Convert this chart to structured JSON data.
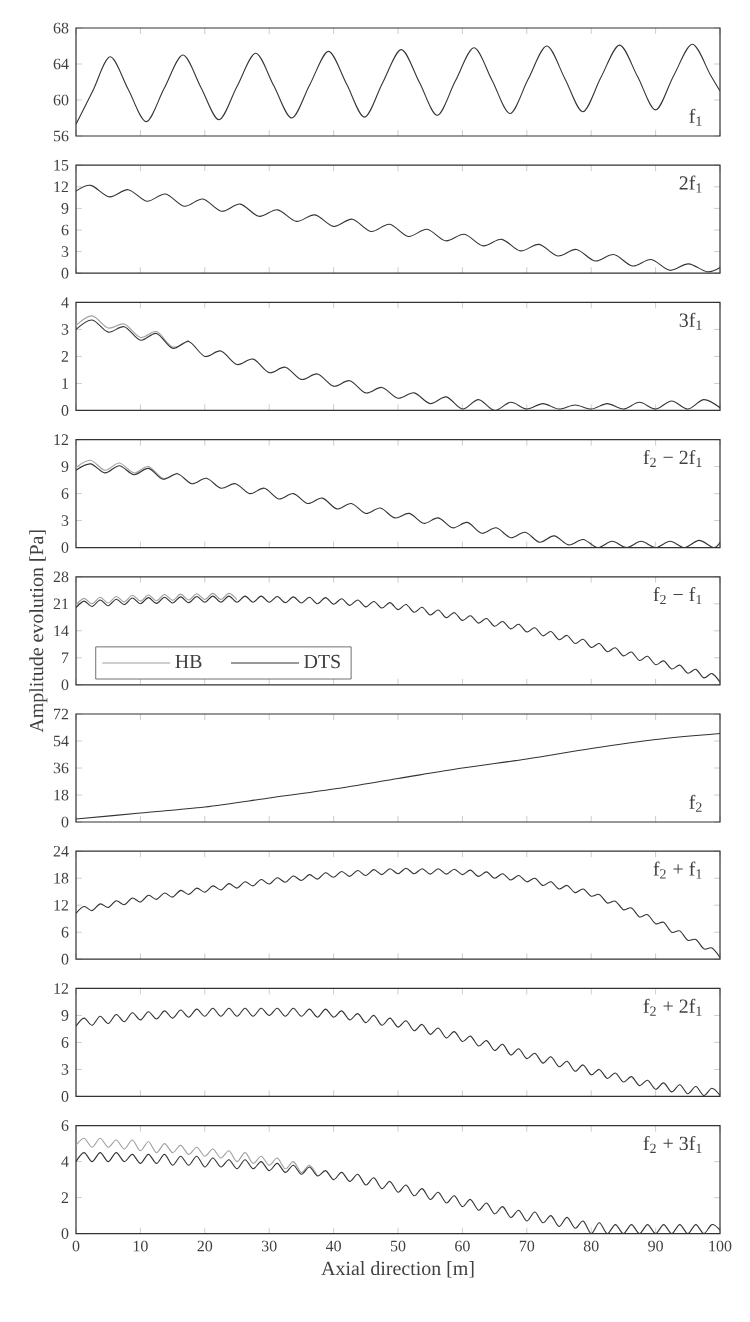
{
  "chart_data": [
    {
      "type": "line",
      "title": "f$_{1}$",
      "xlim": [
        0,
        100
      ],
      "xticks": [
        0,
        10,
        20,
        30,
        40,
        50,
        60,
        70,
        80,
        90,
        100
      ],
      "ylim": [
        56,
        68
      ],
      "yticks": [
        56,
        60,
        64,
        68
      ],
      "tick_labels": "y",
      "x": [
        0,
        2.6,
        5.3,
        8.1,
        10.9,
        13.7,
        16.6,
        19.4,
        22.2,
        25.0,
        27.9,
        30.7,
        33.5,
        36.3,
        39.2,
        42.0,
        44.8,
        47.6,
        50.5,
        53.3,
        56.1,
        58.9,
        61.8,
        64.6,
        67.4,
        70.2,
        73.1,
        75.9,
        78.7,
        81.5,
        84.4,
        87.2,
        90.0,
        92.8,
        95.7,
        98.5,
        100
      ],
      "series": [
        {
          "color": "#333333",
          "values": [
            57.3,
            61.0,
            64.8,
            61.2,
            57.6,
            61.3,
            65.0,
            61.4,
            57.8,
            61.5,
            65.2,
            61.6,
            58.0,
            61.7,
            65.4,
            61.8,
            58.1,
            61.9,
            65.6,
            62.0,
            58.3,
            62.1,
            65.8,
            62.2,
            58.5,
            62.3,
            66.0,
            62.4,
            58.7,
            62.5,
            66.1,
            62.6,
            58.9,
            62.7,
            66.2,
            62.8,
            61.0
          ]
        }
      ]
    },
    {
      "type": "line",
      "title": "2f$_{1}$",
      "xlim": [
        0,
        100
      ],
      "xticks": [
        0,
        10,
        20,
        30,
        40,
        50,
        60,
        70,
        80,
        90,
        100
      ],
      "ylim": [
        0,
        15
      ],
      "yticks": [
        0,
        3,
        6,
        9,
        12,
        15
      ],
      "tick_labels": "y",
      "x": [
        0,
        2.3,
        5.2,
        8.1,
        11.0,
        13.9,
        16.8,
        19.7,
        22.6,
        25.5,
        28.4,
        31.3,
        34.2,
        37.1,
        40.0,
        42.9,
        45.8,
        48.7,
        51.6,
        54.5,
        57.4,
        60.3,
        63.2,
        66.1,
        69.0,
        71.9,
        74.8,
        77.7,
        80.6,
        83.5,
        86.4,
        89.3,
        92.2,
        95.1,
        98.0,
        100
      ],
      "series": [
        {
          "color": "#333333",
          "values": [
            11.4,
            12.2,
            10.6,
            11.6,
            10.0,
            11.0,
            9.3,
            10.3,
            8.6,
            9.6,
            7.9,
            8.8,
            7.2,
            8.1,
            6.5,
            7.5,
            5.8,
            6.8,
            5.1,
            6.1,
            4.5,
            5.4,
            3.8,
            4.7,
            3.1,
            4.0,
            2.4,
            3.3,
            1.7,
            2.6,
            1.0,
            1.9,
            0.4,
            1.3,
            0.2,
            0.8
          ]
        }
      ]
    },
    {
      "type": "line",
      "title": "3f$_{1}$",
      "xlim": [
        0,
        100
      ],
      "xticks": [
        0,
        10,
        20,
        30,
        40,
        50,
        60,
        70,
        80,
        90,
        100
      ],
      "ylim": [
        0,
        4
      ],
      "yticks": [
        0,
        1,
        2,
        3,
        4
      ],
      "tick_labels": "y",
      "x": [
        0,
        2.5,
        5,
        7.5,
        10,
        12.5,
        15,
        17.5,
        20,
        22.5,
        25,
        27.5,
        30,
        32.5,
        35,
        37.5,
        40,
        42.5,
        45,
        47.5,
        50,
        52.5,
        55,
        57.5,
        60,
        62.5,
        65,
        67.5,
        70,
        72.5,
        75,
        77.5,
        80,
        82.5,
        85,
        87.5,
        90,
        92.5,
        95,
        97.5,
        100
      ],
      "series": [
        {
          "color": "#a0a0a0",
          "values": [
            3.15,
            3.5,
            3.05,
            3.2,
            2.7,
            2.92,
            2.35,
            2.6,
            null,
            null,
            null,
            null,
            null,
            null,
            null,
            null,
            null,
            null,
            null,
            null,
            null,
            null,
            null,
            null,
            null,
            null,
            null,
            null,
            null,
            null,
            null,
            null,
            null,
            null,
            null,
            null,
            null,
            null,
            null,
            null,
            null
          ]
        },
        {
          "color": "#333333",
          "values": [
            3.0,
            3.35,
            2.9,
            3.1,
            2.6,
            2.85,
            2.3,
            2.55,
            2.0,
            2.2,
            1.7,
            1.9,
            1.4,
            1.6,
            1.15,
            1.35,
            0.9,
            1.1,
            0.65,
            0.85,
            0.45,
            0.65,
            0.25,
            0.5,
            0.05,
            0.4,
            0.0,
            0.3,
            0.05,
            0.25,
            0.05,
            0.2,
            0.05,
            0.25,
            0.05,
            0.3,
            0.05,
            0.35,
            0.05,
            0.4,
            0.1
          ]
        }
      ]
    },
    {
      "type": "line",
      "title": "f$_{2}$ − 2f$_{1}$",
      "xlim": [
        0,
        100
      ],
      "xticks": [
        0,
        10,
        20,
        30,
        40,
        50,
        60,
        70,
        80,
        90,
        100
      ],
      "ylim": [
        0,
        12
      ],
      "yticks": [
        0,
        3,
        6,
        9,
        12
      ],
      "tick_labels": "y",
      "x": [
        0,
        2.25,
        4.5,
        6.75,
        9,
        11.25,
        13.5,
        15.75,
        18,
        20.25,
        22.5,
        24.75,
        27,
        29.25,
        31.5,
        33.75,
        36,
        38.25,
        40.5,
        42.75,
        45,
        47.25,
        49.5,
        51.75,
        54,
        56.25,
        58.5,
        60.75,
        63,
        65.25,
        67.5,
        69.75,
        72,
        74.25,
        76.5,
        78.75,
        81,
        83.25,
        85.5,
        87.75,
        90,
        92.25,
        94.5,
        96.75,
        99,
        100
      ],
      "series": [
        {
          "color": "#a0a0a0",
          "values": [
            8.9,
            9.7,
            8.6,
            9.4,
            8.3,
            9.0,
            7.7,
            8.3,
            null,
            null,
            null,
            null,
            null,
            null,
            null,
            null,
            null,
            null,
            null,
            null,
            null,
            null,
            null,
            null,
            null,
            null,
            null,
            null,
            null,
            null,
            null,
            null,
            null,
            null,
            null,
            null,
            null,
            null,
            null,
            null,
            null,
            null,
            null,
            null,
            null,
            null
          ]
        },
        {
          "color": "#333333",
          "values": [
            8.6,
            9.3,
            8.3,
            9.1,
            8.1,
            8.8,
            7.6,
            8.2,
            7.1,
            7.7,
            6.6,
            7.1,
            6.0,
            6.6,
            5.4,
            6.0,
            4.9,
            5.5,
            4.3,
            4.9,
            3.8,
            4.4,
            3.3,
            3.8,
            2.7,
            3.3,
            2.2,
            2.8,
            1.6,
            2.2,
            1.1,
            1.7,
            0.6,
            1.3,
            0.3,
            0.9,
            0.0,
            0.7,
            0.0,
            0.7,
            0.0,
            0.7,
            0.0,
            0.8,
            0.0,
            0.6
          ]
        }
      ]
    },
    {
      "type": "line",
      "title": "f$_{2}$ − f$_{1}$",
      "ylabel": "Amplitude evolution [Pa]",
      "xlim": [
        0,
        100
      ],
      "xticks": [
        0,
        10,
        20,
        30,
        40,
        50,
        60,
        70,
        80,
        90,
        100
      ],
      "ylim": [
        0,
        28
      ],
      "yticks": [
        0,
        7,
        14,
        21,
        28
      ],
      "tick_labels": "y",
      "legend": "bottom left",
      "x": [
        0,
        1.25,
        2.5,
        3.75,
        5,
        6.25,
        7.5,
        8.75,
        10,
        11.25,
        12.5,
        13.75,
        15,
        16.25,
        17.5,
        18.75,
        20,
        21.25,
        22.5,
        23.75,
        25,
        26.25,
        27.5,
        28.75,
        30,
        31.25,
        32.5,
        33.75,
        35,
        36.25,
        37.5,
        38.75,
        40,
        41.25,
        42.5,
        43.75,
        45,
        46.25,
        47.5,
        48.75,
        50,
        51.25,
        52.5,
        53.75,
        55,
        56.25,
        57.5,
        58.75,
        60,
        61.25,
        62.5,
        63.75,
        65,
        66.25,
        67.5,
        68.75,
        70,
        71.25,
        72.5,
        73.75,
        75,
        76.25,
        77.5,
        78.75,
        80,
        81.25,
        82.5,
        83.75,
        85,
        86.25,
        87.5,
        88.75,
        90,
        91.25,
        92.5,
        93.75,
        95,
        96.25,
        97.5,
        98.75,
        100
      ],
      "series": [
        {
          "name": "HB",
          "color": "#a0a0a0",
          "values": [
            20.7,
            22.4,
            21.0,
            22.7,
            21.2,
            22.9,
            21.5,
            23.2,
            21.7,
            23.3,
            21.8,
            23.4,
            21.9,
            23.5,
            22.0,
            23.6,
            22.1,
            23.7,
            22.1,
            23.7,
            22.1,
            null,
            null,
            null,
            null,
            null,
            null,
            null,
            null,
            null,
            null,
            null,
            null,
            null,
            null,
            null,
            null,
            null,
            null,
            null,
            null,
            null,
            null,
            null,
            null,
            null,
            null,
            null,
            null,
            null,
            null,
            null,
            null,
            null,
            null,
            null,
            null,
            null,
            null,
            null,
            null,
            null,
            null,
            null,
            null,
            null,
            null,
            null,
            null,
            null,
            null,
            null,
            null,
            null,
            null,
            null,
            null,
            null,
            null,
            null,
            null
          ]
        },
        {
          "name": "DTS",
          "color": "#333333",
          "values": [
            20.0,
            21.7,
            20.3,
            22.0,
            20.5,
            22.2,
            20.8,
            22.5,
            21.0,
            22.6,
            21.1,
            22.7,
            21.2,
            22.8,
            21.3,
            22.9,
            21.4,
            23.0,
            21.4,
            23.0,
            21.4,
            23.0,
            21.4,
            23.0,
            21.4,
            22.9,
            21.3,
            22.8,
            21.2,
            22.7,
            21.0,
            22.6,
            20.9,
            22.3,
            20.6,
            22.0,
            20.2,
            21.6,
            19.9,
            21.3,
            19.5,
            20.8,
            18.8,
            20.1,
            18.1,
            19.4,
            17.4,
            18.7,
            16.7,
            17.9,
            16.0,
            17.2,
            15.2,
            16.4,
            14.5,
            15.7,
            13.7,
            14.8,
            12.7,
            13.8,
            11.7,
            12.8,
            10.7,
            11.8,
            9.7,
            10.7,
            8.6,
            9.6,
            7.5,
            8.5,
            6.3,
            7.4,
            5.2,
            6.2,
            4.1,
            5.1,
            3.0,
            4.0,
            1.8,
            2.9,
            0.7
          ]
        }
      ]
    },
    {
      "type": "line",
      "title": "f$_{2}$",
      "xlim": [
        0,
        100
      ],
      "xticks": [
        0,
        10,
        20,
        30,
        40,
        50,
        60,
        70,
        80,
        90,
        100
      ],
      "ylim": [
        0,
        72
      ],
      "yticks": [
        0,
        18,
        36,
        54,
        72
      ],
      "tick_labels": "y",
      "x": [
        0,
        10,
        20,
        30,
        40,
        50,
        60,
        70,
        80,
        90,
        100
      ],
      "series": [
        {
          "color": "#333333",
          "values": [
            2,
            6,
            10,
            16,
            22,
            29,
            36,
            42,
            49,
            55,
            59
          ]
        }
      ]
    },
    {
      "type": "line",
      "title": "f$_{2}$ + f$_{1}$",
      "xlim": [
        0,
        100
      ],
      "xticks": [
        0,
        10,
        20,
        30,
        40,
        50,
        60,
        70,
        80,
        90,
        100
      ],
      "ylim": [
        0,
        24
      ],
      "yticks": [
        0,
        6,
        12,
        18,
        24
      ],
      "tick_labels": "y",
      "x": [
        0,
        1.25,
        2.5,
        3.75,
        5,
        6.25,
        7.5,
        8.75,
        10,
        11.25,
        12.5,
        13.75,
        15,
        16.25,
        17.5,
        18.75,
        20,
        21.25,
        22.5,
        23.75,
        25,
        26.25,
        27.5,
        28.75,
        30,
        31.25,
        32.5,
        33.75,
        35,
        36.25,
        37.5,
        38.75,
        40,
        41.25,
        42.5,
        43.75,
        45,
        46.25,
        47.5,
        48.75,
        50,
        51.25,
        52.5,
        53.75,
        55,
        56.25,
        57.5,
        58.75,
        60,
        61.25,
        62.5,
        63.75,
        65,
        66.25,
        67.5,
        68.75,
        70,
        71.25,
        72.5,
        73.75,
        75,
        76.25,
        77.5,
        78.75,
        80,
        81.25,
        82.5,
        83.75,
        85,
        86.25,
        87.5,
        88.75,
        90,
        91.25,
        92.5,
        93.75,
        95,
        96.25,
        97.5,
        98.75,
        100
      ],
      "series": [
        {
          "color": "#333333",
          "values": [
            10.2,
            11.7,
            10.8,
            12.3,
            11.5,
            13.0,
            12.1,
            13.6,
            12.7,
            14.2,
            13.3,
            14.7,
            13.8,
            15.3,
            14.4,
            15.8,
            14.9,
            16.3,
            15.4,
            16.8,
            15.8,
            17.2,
            16.3,
            17.7,
            16.7,
            18.1,
            17.1,
            18.5,
            17.5,
            18.8,
            17.8,
            19.2,
            18.2,
            19.5,
            18.4,
            19.7,
            18.6,
            19.9,
            18.8,
            20.1,
            19.0,
            20.2,
            19.0,
            20.1,
            18.9,
            20.1,
            18.9,
            20.0,
            18.8,
            19.8,
            18.4,
            19.4,
            18.0,
            19.0,
            17.6,
            18.6,
            17.2,
            18.0,
            16.4,
            17.2,
            15.6,
            16.4,
            14.8,
            15.6,
            14.0,
            14.4,
            12.5,
            12.9,
            11.0,
            11.4,
            9.4,
            9.9,
            7.9,
            8.2,
            6.0,
            6.3,
            4.2,
            4.4,
            2.3,
            2.5,
            0.4
          ]
        }
      ]
    },
    {
      "type": "line",
      "title": "f$_{2}$ + 2f$_{1}$",
      "xlim": [
        0,
        100
      ],
      "xticks": [
        0,
        10,
        20,
        30,
        40,
        50,
        60,
        70,
        80,
        90,
        100
      ],
      "ylim": [
        0,
        12
      ],
      "yticks": [
        0,
        3,
        6,
        9,
        12
      ],
      "tick_labels": "y",
      "x": [
        0,
        1.25,
        2.5,
        3.75,
        5,
        6.25,
        7.5,
        8.75,
        10,
        11.25,
        12.5,
        13.75,
        15,
        16.25,
        17.5,
        18.75,
        20,
        21.25,
        22.5,
        23.75,
        25,
        26.25,
        27.5,
        28.75,
        30,
        31.25,
        32.5,
        33.75,
        35,
        36.25,
        37.5,
        38.75,
        40,
        41.25,
        42.5,
        43.75,
        45,
        46.25,
        47.5,
        48.75,
        50,
        51.25,
        52.5,
        53.75,
        55,
        56.25,
        57.5,
        58.75,
        60,
        61.25,
        62.5,
        63.75,
        65,
        66.25,
        67.5,
        68.75,
        70,
        71.25,
        72.5,
        73.75,
        75,
        76.25,
        77.5,
        78.75,
        80,
        81.25,
        82.5,
        83.75,
        85,
        86.25,
        87.5,
        88.75,
        90,
        91.25,
        92.5,
        93.75,
        95,
        96.25,
        97.5,
        98.75,
        100
      ],
      "series": [
        {
          "color": "#333333",
          "values": [
            7.8,
            8.7,
            7.9,
            8.9,
            8.1,
            9.1,
            8.3,
            9.3,
            8.5,
            9.4,
            8.6,
            9.5,
            8.7,
            9.6,
            8.8,
            9.7,
            8.9,
            9.8,
            8.9,
            9.8,
            8.9,
            9.8,
            8.9,
            9.8,
            9.0,
            9.8,
            8.9,
            9.8,
            8.9,
            9.7,
            8.8,
            9.7,
            8.8,
            9.5,
            8.5,
            9.2,
            8.2,
            9.0,
            7.9,
            8.7,
            7.7,
            8.4,
            7.3,
            8.0,
            6.9,
            7.6,
            6.5,
            7.2,
            6.1,
            6.7,
            5.6,
            6.2,
            5.1,
            5.8,
            4.6,
            5.3,
            4.2,
            4.8,
            3.7,
            4.4,
            3.3,
            3.9,
            2.8,
            3.5,
            2.4,
            3.0,
            2.0,
            2.6,
            1.6,
            2.2,
            1.2,
            1.8,
            0.8,
            1.5,
            0.5,
            1.3,
            0.3,
            1.1,
            0.1,
            0.9,
            0.1
          ]
        }
      ]
    },
    {
      "type": "line",
      "title": "f$_{2}$ + 3f$_{1}$",
      "xlabel": "Axial direction [m]",
      "xlim": [
        0,
        100
      ],
      "xticks": [
        0,
        10,
        20,
        30,
        40,
        50,
        60,
        70,
        80,
        90,
        100
      ],
      "ylim": [
        0,
        6
      ],
      "yticks": [
        0,
        2,
        4,
        6
      ],
      "x": [
        0,
        1.25,
        2.5,
        3.75,
        5,
        6.25,
        7.5,
        8.75,
        10,
        11.25,
        12.5,
        13.75,
        15,
        16.25,
        17.5,
        18.75,
        20,
        21.25,
        22.5,
        23.75,
        25,
        26.25,
        27.5,
        28.75,
        30,
        31.25,
        32.5,
        33.75,
        35,
        36.25,
        37.5,
        38.75,
        40,
        41.25,
        42.5,
        43.75,
        45,
        46.25,
        47.5,
        48.75,
        50,
        51.25,
        52.5,
        53.75,
        55,
        56.25,
        57.5,
        58.75,
        60,
        61.25,
        62.5,
        63.75,
        65,
        66.25,
        67.5,
        68.75,
        70,
        71.25,
        72.5,
        73.75,
        75,
        76.25,
        77.5,
        78.75,
        80,
        81.25,
        82.5,
        83.75,
        85,
        86.25,
        87.5,
        88.75,
        90,
        91.25,
        92.5,
        93.75,
        95,
        96.25,
        97.5,
        98.75,
        100
      ],
      "series": [
        {
          "color": "#a0a0a0",
          "values": [
            4.9,
            5.3,
            4.8,
            5.3,
            4.8,
            5.2,
            4.7,
            5.2,
            4.6,
            5.1,
            4.5,
            5.0,
            4.5,
            4.9,
            4.4,
            4.8,
            4.3,
            4.7,
            4.2,
            4.6,
            4.0,
            4.5,
            3.9,
            4.3,
            3.8,
            4.2,
            3.6,
            4.0,
            3.4,
            3.8,
            3.2,
            null,
            null,
            null,
            null,
            null,
            null,
            null,
            null,
            null,
            null,
            null,
            null,
            null,
            null,
            null,
            null,
            null,
            null,
            null,
            null,
            null,
            null,
            null,
            null,
            null,
            null,
            null,
            null,
            null,
            null,
            null,
            null,
            null,
            null,
            null,
            null,
            null,
            null,
            null,
            null,
            null,
            null,
            null,
            null,
            null,
            null,
            null,
            null,
            null,
            null
          ]
        },
        {
          "color": "#333333",
          "values": [
            4.0,
            4.5,
            4.0,
            4.5,
            4.0,
            4.5,
            4.0,
            4.4,
            3.9,
            4.4,
            3.9,
            4.4,
            3.8,
            4.3,
            3.8,
            4.3,
            3.7,
            4.2,
            3.7,
            4.1,
            3.6,
            4.1,
            3.6,
            4.0,
            3.5,
            3.9,
            3.4,
            3.8,
            3.3,
            3.7,
            3.2,
            3.5,
            3.0,
            3.4,
            2.9,
            3.3,
            2.7,
            3.1,
            2.5,
            2.9,
            2.3,
            2.7,
            2.1,
            2.5,
            1.9,
            2.3,
            1.7,
            2.1,
            1.5,
            1.9,
            1.3,
            1.7,
            1.1,
            1.5,
            0.9,
            1.3,
            0.7,
            1.2,
            0.6,
            1.0,
            0.4,
            0.9,
            0.3,
            0.7,
            0.0,
            0.6,
            0.0,
            0.5,
            0.0,
            0.5,
            0.0,
            0.5,
            0.0,
            0.5,
            0.0,
            0.5,
            0.0,
            0.5,
            0.0,
            0.5,
            0.2
          ]
        }
      ]
    }
  ]
}
